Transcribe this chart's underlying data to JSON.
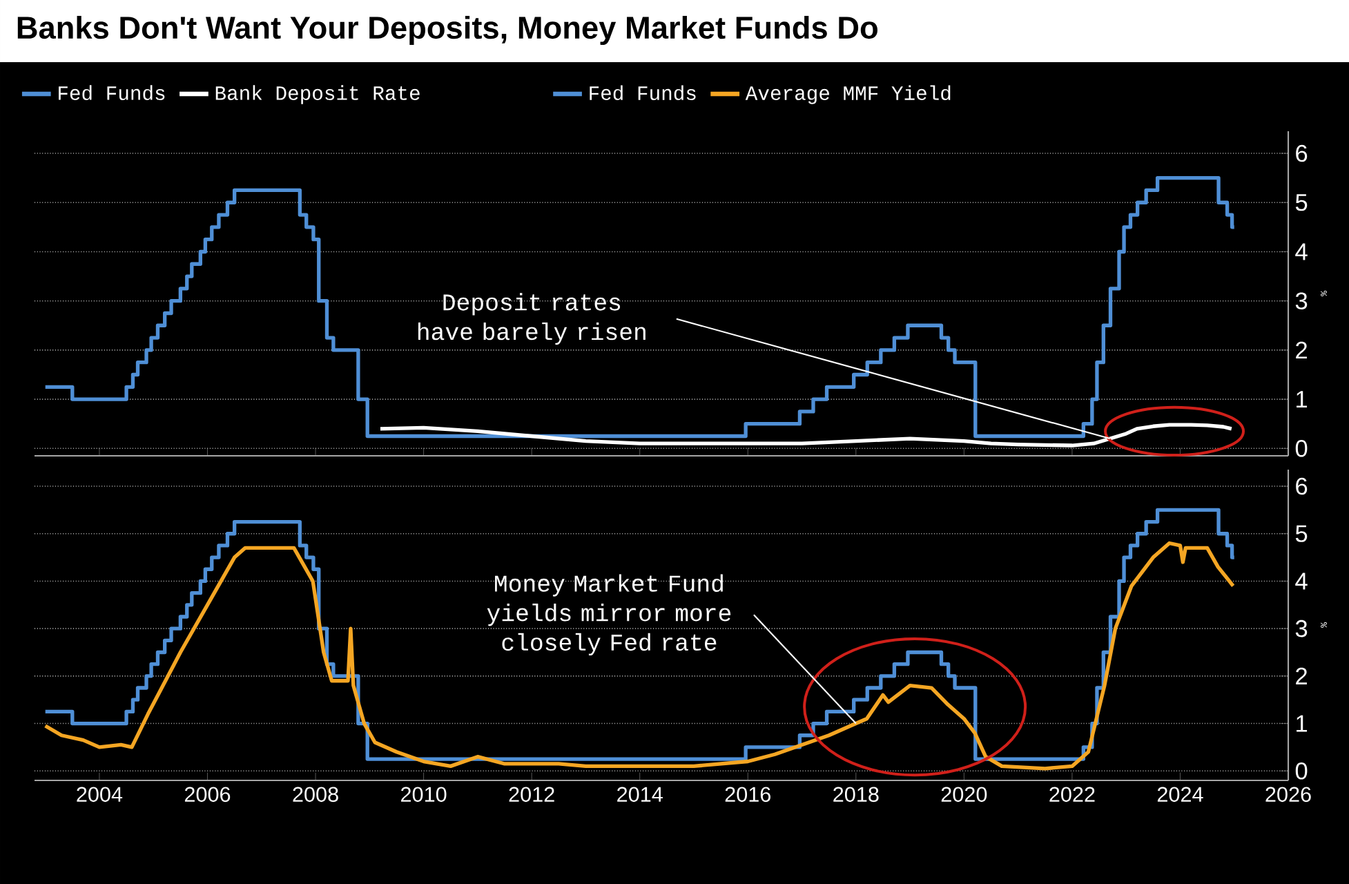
{
  "chart_data": [
    {
      "type": "step",
      "title": "Banks Don't Want Your Deposits, Money Market Funds Do",
      "ylabel": "%",
      "xlim": [
        2002.8,
        2026
      ],
      "xticks": [
        2004,
        2006,
        2008,
        2010,
        2012,
        2014,
        2016,
        2018,
        2020,
        2022,
        2024,
        2026
      ],
      "ylim": [
        -0.15,
        6.45
      ],
      "yticks": [
        0,
        1,
        2,
        3,
        4,
        5,
        6
      ],
      "tick_labels": "y",
      "grid": "y",
      "legend": "top",
      "series": [
        {
          "name": "Fed Funds",
          "color": "#4f8fd6",
          "x": [
            2003.0,
            2003.5,
            2004.5,
            2004.62,
            2004.71,
            2004.87,
            2004.96,
            2005.08,
            2005.21,
            2005.33,
            2005.5,
            2005.62,
            2005.71,
            2005.87,
            2005.96,
            2006.08,
            2006.21,
            2006.37,
            2006.5,
            2007.71,
            2007.83,
            2007.96,
            2008.06,
            2008.21,
            2008.33,
            2008.79,
            2008.96,
            2015.96,
            2016.96,
            2017.21,
            2017.46,
            2017.96,
            2018.21,
            2018.46,
            2018.71,
            2018.96,
            2019.58,
            2019.71,
            2019.83,
            2020.21,
            2022.21,
            2022.37,
            2022.46,
            2022.58,
            2022.71,
            2022.87,
            2022.96,
            2023.08,
            2023.21,
            2023.37,
            2023.58,
            2024.71,
            2024.87,
            2024.96,
            2025.0
          ],
          "values": [
            1.25,
            1.0,
            1.25,
            1.5,
            1.75,
            2.0,
            2.25,
            2.5,
            2.75,
            3.0,
            3.25,
            3.5,
            3.75,
            4.0,
            4.25,
            4.5,
            4.75,
            5.0,
            5.25,
            4.75,
            4.5,
            4.25,
            3.0,
            2.25,
            2.0,
            1.0,
            0.25,
            0.5,
            0.75,
            1.0,
            1.25,
            1.5,
            1.75,
            2.0,
            2.25,
            2.5,
            2.25,
            2.0,
            1.75,
            0.25,
            0.5,
            1.0,
            1.75,
            2.5,
            3.25,
            4.0,
            4.5,
            4.75,
            5.0,
            5.25,
            5.5,
            5.0,
            4.75,
            4.5,
            4.5
          ]
        },
        {
          "name": "Bank Deposit Rate",
          "type": "line",
          "color": "#ffffff",
          "x": [
            2009.2,
            2010.0,
            2011.0,
            2012.0,
            2013.0,
            2014.0,
            2015.0,
            2016.0,
            2017.0,
            2018.0,
            2019.0,
            2020.0,
            2020.5,
            2021.0,
            2022.0,
            2022.4,
            2022.7,
            2023.0,
            2023.2,
            2023.5,
            2023.8,
            2024.2,
            2024.5,
            2024.8,
            2024.95
          ],
          "values": [
            0.4,
            0.42,
            0.35,
            0.25,
            0.15,
            0.1,
            0.1,
            0.1,
            0.1,
            0.15,
            0.2,
            0.15,
            0.1,
            0.08,
            0.06,
            0.1,
            0.2,
            0.3,
            0.4,
            0.45,
            0.48,
            0.48,
            0.47,
            0.44,
            0.4
          ]
        }
      ],
      "annotations": [
        {
          "text": "Deposit rates have barely risen",
          "x": 2022.7,
          "y": 0.2
        }
      ]
    },
    {
      "type": "line",
      "ylabel": "%",
      "xlim": [
        2002.8,
        2026
      ],
      "xticks": [
        2004,
        2006,
        2008,
        2010,
        2012,
        2014,
        2016,
        2018,
        2020,
        2022,
        2024,
        2026
      ],
      "ylim": [
        -0.2,
        6.35
      ],
      "yticks": [
        0,
        1,
        2,
        3,
        4,
        5,
        6
      ],
      "grid": "y",
      "legend": "top",
      "series": [
        {
          "name": "Fed Funds",
          "type": "step",
          "color": "#4f8fd6",
          "x": [
            2003.0,
            2003.5,
            2004.5,
            2004.62,
            2004.71,
            2004.87,
            2004.96,
            2005.08,
            2005.21,
            2005.33,
            2005.5,
            2005.62,
            2005.71,
            2005.87,
            2005.96,
            2006.08,
            2006.21,
            2006.37,
            2006.5,
            2007.71,
            2007.83,
            2007.96,
            2008.06,
            2008.21,
            2008.33,
            2008.79,
            2008.96,
            2015.96,
            2016.96,
            2017.21,
            2017.46,
            2017.96,
            2018.21,
            2018.46,
            2018.71,
            2018.96,
            2019.58,
            2019.71,
            2019.83,
            2020.21,
            2022.21,
            2022.37,
            2022.46,
            2022.58,
            2022.71,
            2022.87,
            2022.96,
            2023.08,
            2023.21,
            2023.37,
            2023.58,
            2024.71,
            2024.87,
            2024.96,
            2025.0
          ],
          "values": [
            1.25,
            1.0,
            1.25,
            1.5,
            1.75,
            2.0,
            2.25,
            2.5,
            2.75,
            3.0,
            3.25,
            3.5,
            3.75,
            4.0,
            4.25,
            4.5,
            4.75,
            5.0,
            5.25,
            4.75,
            4.5,
            4.25,
            3.0,
            2.25,
            2.0,
            1.0,
            0.25,
            0.5,
            0.75,
            1.0,
            1.25,
            1.5,
            1.75,
            2.0,
            2.25,
            2.5,
            2.25,
            2.0,
            1.75,
            0.25,
            0.5,
            1.0,
            1.75,
            2.5,
            3.25,
            4.0,
            4.5,
            4.75,
            5.0,
            5.25,
            5.5,
            5.0,
            4.75,
            4.5,
            4.5
          ]
        },
        {
          "name": "Average MMF Yield",
          "color": "#f5a623",
          "x": [
            2003.0,
            2003.3,
            2003.7,
            2004.0,
            2004.4,
            2004.6,
            2004.9,
            2005.5,
            2006.0,
            2006.5,
            2006.7,
            2007.0,
            2007.6,
            2007.8,
            2007.95,
            2008.15,
            2008.3,
            2008.6,
            2008.65,
            2008.7,
            2008.9,
            2009.1,
            2009.5,
            2010.0,
            2010.5,
            2011.0,
            2011.5,
            2012.5,
            2013.0,
            2014.0,
            2015.0,
            2016.0,
            2016.5,
            2017.0,
            2017.5,
            2018.0,
            2018.2,
            2018.5,
            2018.6,
            2019.0,
            2019.4,
            2019.7,
            2020.0,
            2020.2,
            2020.4,
            2020.7,
            2021.5,
            2022.0,
            2022.3,
            2022.6,
            2022.8,
            2023.1,
            2023.5,
            2023.8,
            2024.0,
            2024.05,
            2024.1,
            2024.5,
            2024.7,
            2024.98
          ],
          "values": [
            0.95,
            0.75,
            0.65,
            0.5,
            0.55,
            0.5,
            1.2,
            2.5,
            3.5,
            4.5,
            4.7,
            4.7,
            4.7,
            4.3,
            4.0,
            2.5,
            1.9,
            1.9,
            3.0,
            1.8,
            1.0,
            0.6,
            0.4,
            0.2,
            0.1,
            0.3,
            0.15,
            0.15,
            0.1,
            0.1,
            0.1,
            0.2,
            0.35,
            0.55,
            0.75,
            1.0,
            1.1,
            1.6,
            1.45,
            1.8,
            1.75,
            1.4,
            1.1,
            0.8,
            0.3,
            0.1,
            0.05,
            0.1,
            0.4,
            1.8,
            3.0,
            3.9,
            4.5,
            4.8,
            4.75,
            4.4,
            4.7,
            4.7,
            4.3,
            3.9
          ]
        }
      ],
      "annotations": [
        {
          "text": "Money Market Fund yields mirror more closely Fed rate",
          "x": 2018.0,
          "y": 1.0
        }
      ]
    }
  ]
}
